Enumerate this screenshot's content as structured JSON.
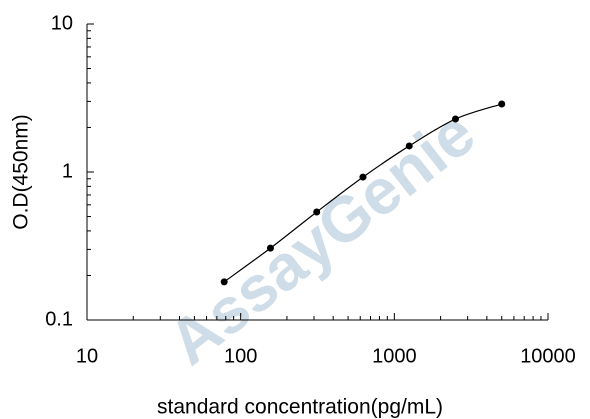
{
  "chart_data": {
    "type": "line",
    "x_label": "standard concentration(pg/mL)",
    "y_label": "O.D(450nm)",
    "watermark": "AssayGenie",
    "x": [
      78.125,
      156.25,
      312.5,
      625,
      1250,
      2500,
      5000
    ],
    "series": [
      {
        "color": "#000000",
        "values": [
          0.181,
          0.306,
          0.537,
          0.924,
          1.5,
          2.28,
          2.88
        ]
      }
    ],
    "xlim": [
      10,
      10000
    ],
    "xticks": [
      10,
      100,
      1000,
      10000
    ],
    "ylim": [
      0.1,
      10
    ],
    "yticks": [
      0.1,
      1,
      10
    ],
    "xlog": true,
    "ylog": true,
    "minor_ticks": true,
    "grid": false
  }
}
